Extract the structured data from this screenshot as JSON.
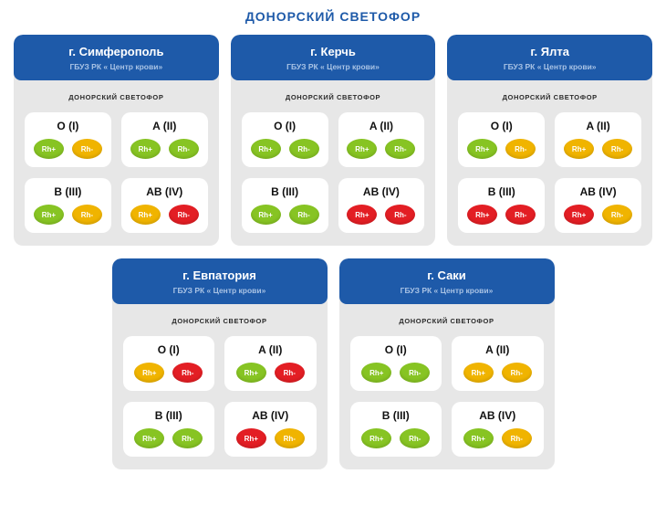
{
  "title": "ДОНОРСКИЙ СВЕТОФОР",
  "colors": {
    "header_blue": "#1e5aa9",
    "subtitle_blue": "#a9c3e5",
    "body_gray": "#e7e7e7",
    "green": "#87c423",
    "yellow": "#f0b400",
    "red": "#e31e24"
  },
  "cities": [
    {
      "name": "г. Симферополь",
      "subtitle": "ГБУЗ РК « Центр крови»",
      "section_label": "ДОНОРСКИЙ СВЕТОФОР",
      "groups": [
        {
          "label": "O (I)",
          "rh_plus": {
            "label": "Rh+",
            "status": "green"
          },
          "rh_minus": {
            "label": "Rh-",
            "status": "yellow"
          }
        },
        {
          "label": "A (II)",
          "rh_plus": {
            "label": "Rh+",
            "status": "green"
          },
          "rh_minus": {
            "label": "Rh-",
            "status": "green"
          }
        },
        {
          "label": "B (III)",
          "rh_plus": {
            "label": "Rh+",
            "status": "green"
          },
          "rh_minus": {
            "label": "Rh-",
            "status": "yellow"
          }
        },
        {
          "label": "AB (IV)",
          "rh_plus": {
            "label": "Rh+",
            "status": "yellow"
          },
          "rh_minus": {
            "label": "Rh-",
            "status": "red"
          }
        }
      ]
    },
    {
      "name": "г. Керчь",
      "subtitle": "ГБУЗ РК « Центр крови»",
      "section_label": "ДОНОРСКИЙ СВЕТОФОР",
      "groups": [
        {
          "label": "O (I)",
          "rh_plus": {
            "label": "Rh+",
            "status": "green"
          },
          "rh_minus": {
            "label": "Rh-",
            "status": "green"
          }
        },
        {
          "label": "A (II)",
          "rh_plus": {
            "label": "Rh+",
            "status": "green"
          },
          "rh_minus": {
            "label": "Rh-",
            "status": "green"
          }
        },
        {
          "label": "B (III)",
          "rh_plus": {
            "label": "Rh+",
            "status": "green"
          },
          "rh_minus": {
            "label": "Rh-",
            "status": "green"
          }
        },
        {
          "label": "AB (IV)",
          "rh_plus": {
            "label": "Rh+",
            "status": "red"
          },
          "rh_minus": {
            "label": "Rh-",
            "status": "red"
          }
        }
      ]
    },
    {
      "name": "г. Ялта",
      "subtitle": "ГБУЗ РК « Центр крови»",
      "section_label": "ДОНОРСКИЙ СВЕТОФОР",
      "groups": [
        {
          "label": "O (I)",
          "rh_plus": {
            "label": "Rh+",
            "status": "green"
          },
          "rh_minus": {
            "label": "Rh-",
            "status": "yellow"
          }
        },
        {
          "label": "A (II)",
          "rh_plus": {
            "label": "Rh+",
            "status": "yellow"
          },
          "rh_minus": {
            "label": "Rh-",
            "status": "yellow"
          }
        },
        {
          "label": "B (III)",
          "rh_plus": {
            "label": "Rh+",
            "status": "red"
          },
          "rh_minus": {
            "label": "Rh-",
            "status": "red"
          }
        },
        {
          "label": "AB (IV)",
          "rh_plus": {
            "label": "Rh+",
            "status": "red"
          },
          "rh_minus": {
            "label": "Rh-",
            "status": "yellow"
          }
        }
      ]
    },
    {
      "name": "г. Евпатория",
      "subtitle": "ГБУЗ РК « Центр крови»",
      "section_label": "ДОНОРСКИЙ СВЕТОФОР",
      "groups": [
        {
          "label": "O (I)",
          "rh_plus": {
            "label": "Rh+",
            "status": "yellow"
          },
          "rh_minus": {
            "label": "Rh-",
            "status": "red"
          }
        },
        {
          "label": "A (II)",
          "rh_plus": {
            "label": "Rh+",
            "status": "green"
          },
          "rh_minus": {
            "label": "Rh-",
            "status": "red"
          }
        },
        {
          "label": "B (III)",
          "rh_plus": {
            "label": "Rh+",
            "status": "green"
          },
          "rh_minus": {
            "label": "Rh-",
            "status": "green"
          }
        },
        {
          "label": "AB (IV)",
          "rh_plus": {
            "label": "Rh+",
            "status": "red"
          },
          "rh_minus": {
            "label": "Rh-",
            "status": "yellow"
          }
        }
      ]
    },
    {
      "name": "г. Саки",
      "subtitle": "ГБУЗ РК « Центр крови»",
      "section_label": "ДОНОРСКИЙ СВЕТОФОР",
      "groups": [
        {
          "label": "O (I)",
          "rh_plus": {
            "label": "Rh+",
            "status": "green"
          },
          "rh_minus": {
            "label": "Rh-",
            "status": "green"
          }
        },
        {
          "label": "A (II)",
          "rh_plus": {
            "label": "Rh+",
            "status": "yellow"
          },
          "rh_minus": {
            "label": "Rh-",
            "status": "yellow"
          }
        },
        {
          "label": "B (III)",
          "rh_plus": {
            "label": "Rh+",
            "status": "green"
          },
          "rh_minus": {
            "label": "Rh-",
            "status": "green"
          }
        },
        {
          "label": "AB (IV)",
          "rh_plus": {
            "label": "Rh+",
            "status": "green"
          },
          "rh_minus": {
            "label": "Rh-",
            "status": "yellow"
          }
        }
      ]
    }
  ]
}
